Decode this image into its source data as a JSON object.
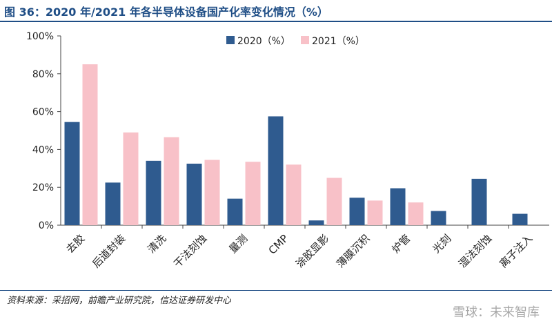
{
  "figure": {
    "title": "图 36：2020 年/2021 年各半导体设备国产化率变化情况（%）",
    "source": "资料来源：采招网，前瞻产业研究院，信达证券研发中心",
    "watermark": "雪球：未来智库"
  },
  "chart_data": {
    "type": "bar",
    "categories": [
      "去胶",
      "后道封装",
      "清洗",
      "干法刻蚀",
      "量测",
      "CMP",
      "涂胶显影",
      "薄膜沉积",
      "炉管",
      "光刻",
      "湿法刻蚀",
      "离子注入"
    ],
    "series": [
      {
        "name": "2020（%）",
        "color": "#2f5b8f",
        "values": [
          54.5,
          22.5,
          34,
          32.5,
          14,
          57.5,
          2.5,
          14.5,
          19.5,
          7.5,
          24.5,
          6
        ]
      },
      {
        "name": "2021（%）",
        "color": "#f8c1c8",
        "values": [
          85,
          49,
          46.5,
          34.5,
          33.5,
          32,
          25,
          13,
          12,
          null,
          null,
          null
        ]
      }
    ],
    "yticks": [
      "0%",
      "20%",
      "40%",
      "60%",
      "80%",
      "100%"
    ],
    "ylim": [
      0,
      100
    ],
    "legend": "top-center",
    "grid": false
  }
}
